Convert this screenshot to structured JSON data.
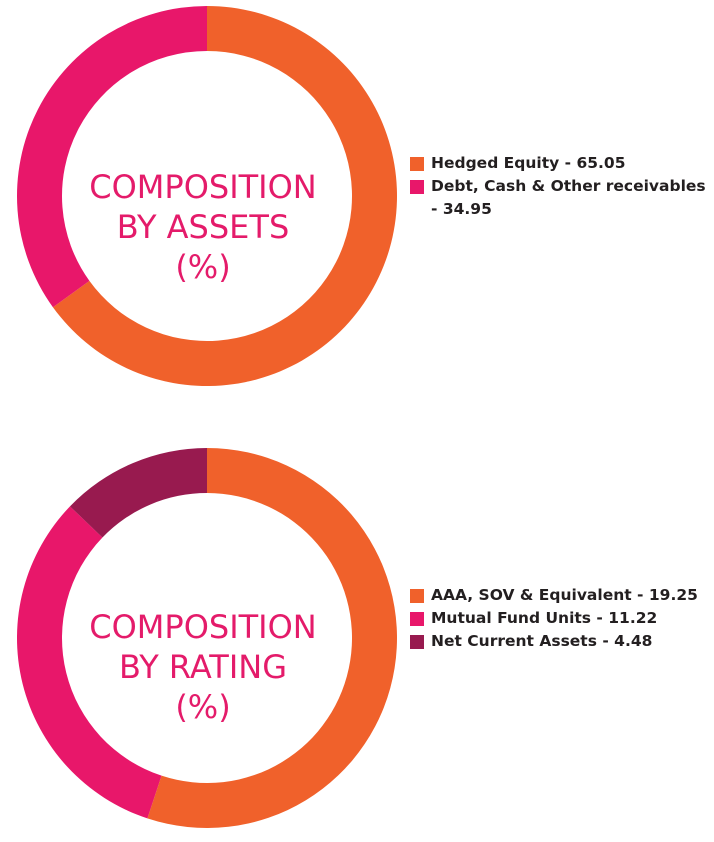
{
  "chart_data": [
    {
      "type": "pie",
      "title": "COMPOSITION BY ASSETS (%)",
      "title_lines": [
        "COMPOSITION",
        "BY ASSETS",
        "(%)"
      ],
      "donut": true,
      "legend_position": "right",
      "categories": [
        "Hedged Equity",
        "Debt, Cash & Other receivables"
      ],
      "values": [
        65.05,
        34.95
      ],
      "colors": [
        "#f0612b",
        "#e8176a"
      ],
      "legend": [
        {
          "label": "Hedged Equity - 65.05",
          "color": "#f0612b"
        },
        {
          "label": "Debt, Cash & Other receivables - 34.95",
          "color": "#e8176a"
        }
      ]
    },
    {
      "type": "pie",
      "title": "COMPOSITION BY RATING (%)",
      "title_lines": [
        "COMPOSITION",
        "BY RATING",
        "(%)"
      ],
      "donut": true,
      "legend_position": "right",
      "categories": [
        "AAA, SOV & Equivalent",
        "Mutual Fund Units",
        "Net Current Assets"
      ],
      "values": [
        19.25,
        11.22,
        4.48
      ],
      "colors": [
        "#f0612b",
        "#e8176a",
        "#981a4f"
      ],
      "legend": [
        {
          "label": "AAA, SOV & Equivalent - 19.25",
          "color": "#f0612b"
        },
        {
          "label": "Mutual Fund Units - 11.22",
          "color": "#e8176a"
        },
        {
          "label": "Net Current Assets - 4.48",
          "color": "#981a4f"
        }
      ]
    }
  ]
}
